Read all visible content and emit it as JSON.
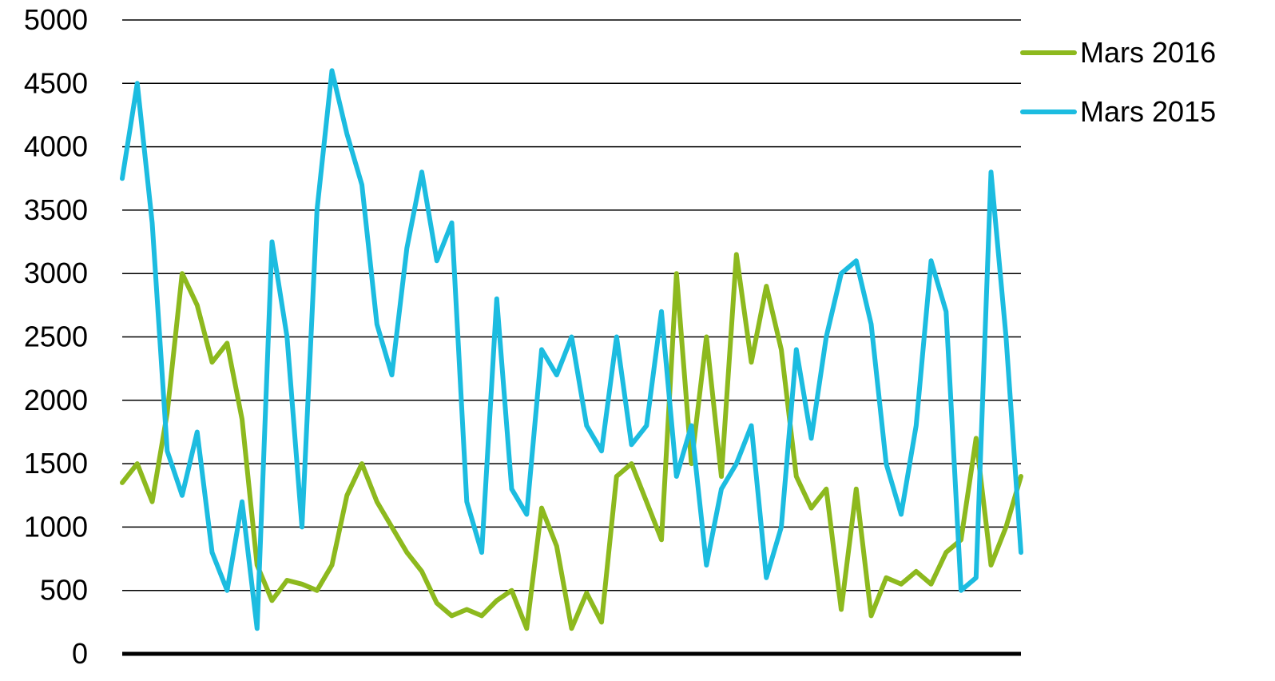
{
  "chart_data": {
    "type": "line",
    "title": "",
    "xlabel": "",
    "ylabel": "",
    "ylim": [
      0,
      5000
    ],
    "yticks": [
      "0",
      "500",
      "1000",
      "1500",
      "2000",
      "2500",
      "3000",
      "3500",
      "4000",
      "4500",
      "5000"
    ],
    "grid": "horizontal",
    "legend_position": "top-right",
    "n_points": 61,
    "series": [
      {
        "name": "Mars 2016",
        "color": "#8DB91E",
        "values": [
          1350,
          1500,
          1200,
          1900,
          3000,
          2750,
          2300,
          2450,
          1850,
          700,
          420,
          580,
          550,
          500,
          700,
          1250,
          1500,
          1200,
          1000,
          800,
          650,
          400,
          300,
          350,
          300,
          420,
          500,
          200,
          1150,
          850,
          200,
          480,
          250,
          1400,
          1500,
          1200,
          900,
          3000,
          1500,
          2500,
          1400,
          3150,
          2300,
          2900,
          2400,
          1400,
          1150,
          1300,
          350,
          1300,
          300,
          600,
          550,
          650,
          550,
          800,
          900,
          1700,
          700,
          1000,
          1400
        ]
      },
      {
        "name": "Mars 2015",
        "color": "#1CBCE0",
        "values": [
          3750,
          4500,
          3400,
          1600,
          1250,
          1750,
          800,
          500,
          1200,
          200,
          3250,
          2500,
          1000,
          3500,
          4600,
          4100,
          3700,
          2600,
          2200,
          3200,
          3800,
          3100,
          3400,
          1200,
          800,
          2800,
          1300,
          1100,
          2400,
          2200,
          2500,
          1800,
          1600,
          2500,
          1650,
          1800,
          2700,
          1400,
          1800,
          700,
          1300,
          1500,
          1800,
          600,
          1000,
          2400,
          1700,
          2500,
          3000,
          3100,
          2600,
          1500,
          1100,
          1800,
          3100,
          2700,
          500,
          600,
          3800,
          2500,
          800
        ]
      }
    ]
  }
}
